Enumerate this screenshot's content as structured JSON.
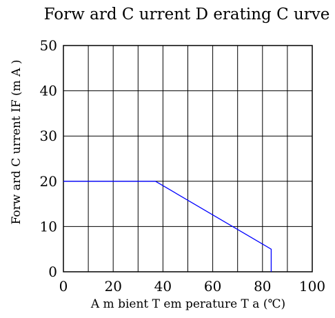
{
  "chart_data": {
    "type": "line",
    "title": "Forw ard C urrent D erating C urve",
    "xlabel": "A m bient T em perature T a (℃)",
    "ylabel": "Forw ard C urrent IF (m A )",
    "xlim": [
      0,
      100
    ],
    "ylim": [
      0,
      50
    ],
    "x_ticks": [
      0,
      20,
      40,
      60,
      80,
      100
    ],
    "y_ticks": [
      0,
      10,
      20,
      30,
      40,
      50
    ],
    "x_gridlines": [
      0,
      10,
      20,
      30,
      40,
      50,
      60,
      70,
      80,
      90,
      100
    ],
    "y_gridlines": [
      0,
      10,
      20,
      30,
      40,
      50
    ],
    "grid": true,
    "series": [
      {
        "color": "#0000ff",
        "x": [
          0,
          37,
          83.5,
          83.5
        ],
        "y": [
          20,
          20,
          5,
          0
        ]
      }
    ]
  },
  "colors": {
    "grid": "#000000",
    "axis": "#000000",
    "series": "#0000ff"
  }
}
